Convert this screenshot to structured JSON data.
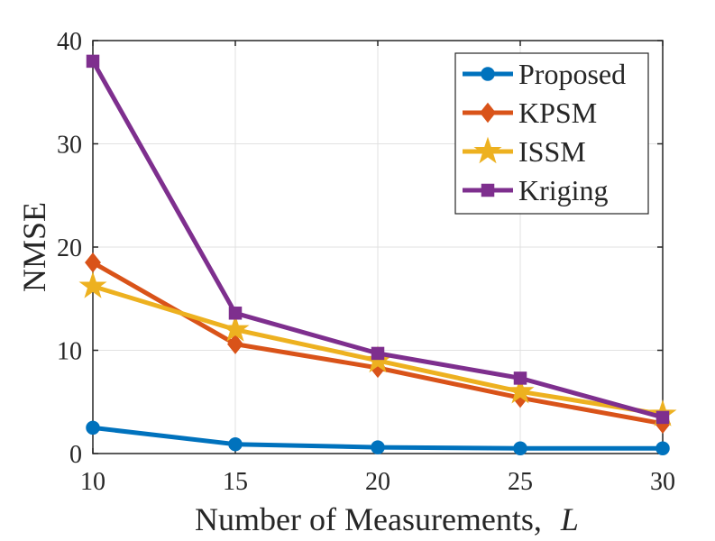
{
  "chart_data": {
    "type": "line",
    "title": "",
    "xlabel": "Number of Measurements,",
    "xlabel_symbol": "L",
    "ylabel": "NMSE",
    "x": [
      10,
      15,
      20,
      25,
      30
    ],
    "xlim": [
      10,
      30
    ],
    "ylim": [
      0,
      40
    ],
    "xticks": [
      10,
      15,
      20,
      25,
      30
    ],
    "yticks": [
      0,
      10,
      20,
      30,
      40
    ],
    "grid": true,
    "legend_position": "top-right",
    "series": [
      {
        "name": "Proposed",
        "values": [
          2.5,
          0.9,
          0.6,
          0.5,
          0.5
        ],
        "color": "#0072BD",
        "marker": "circle"
      },
      {
        "name": "KPSM",
        "values": [
          18.5,
          10.6,
          8.3,
          5.4,
          2.9
        ],
        "color": "#D95319",
        "marker": "diamond"
      },
      {
        "name": "ISSM",
        "values": [
          16.2,
          12.0,
          9.0,
          6.0,
          3.8
        ],
        "color": "#EDB120",
        "marker": "star"
      },
      {
        "name": "Kriging",
        "values": [
          38.0,
          13.6,
          9.7,
          7.3,
          3.5
        ],
        "color": "#7E2F8E",
        "marker": "square"
      }
    ]
  }
}
